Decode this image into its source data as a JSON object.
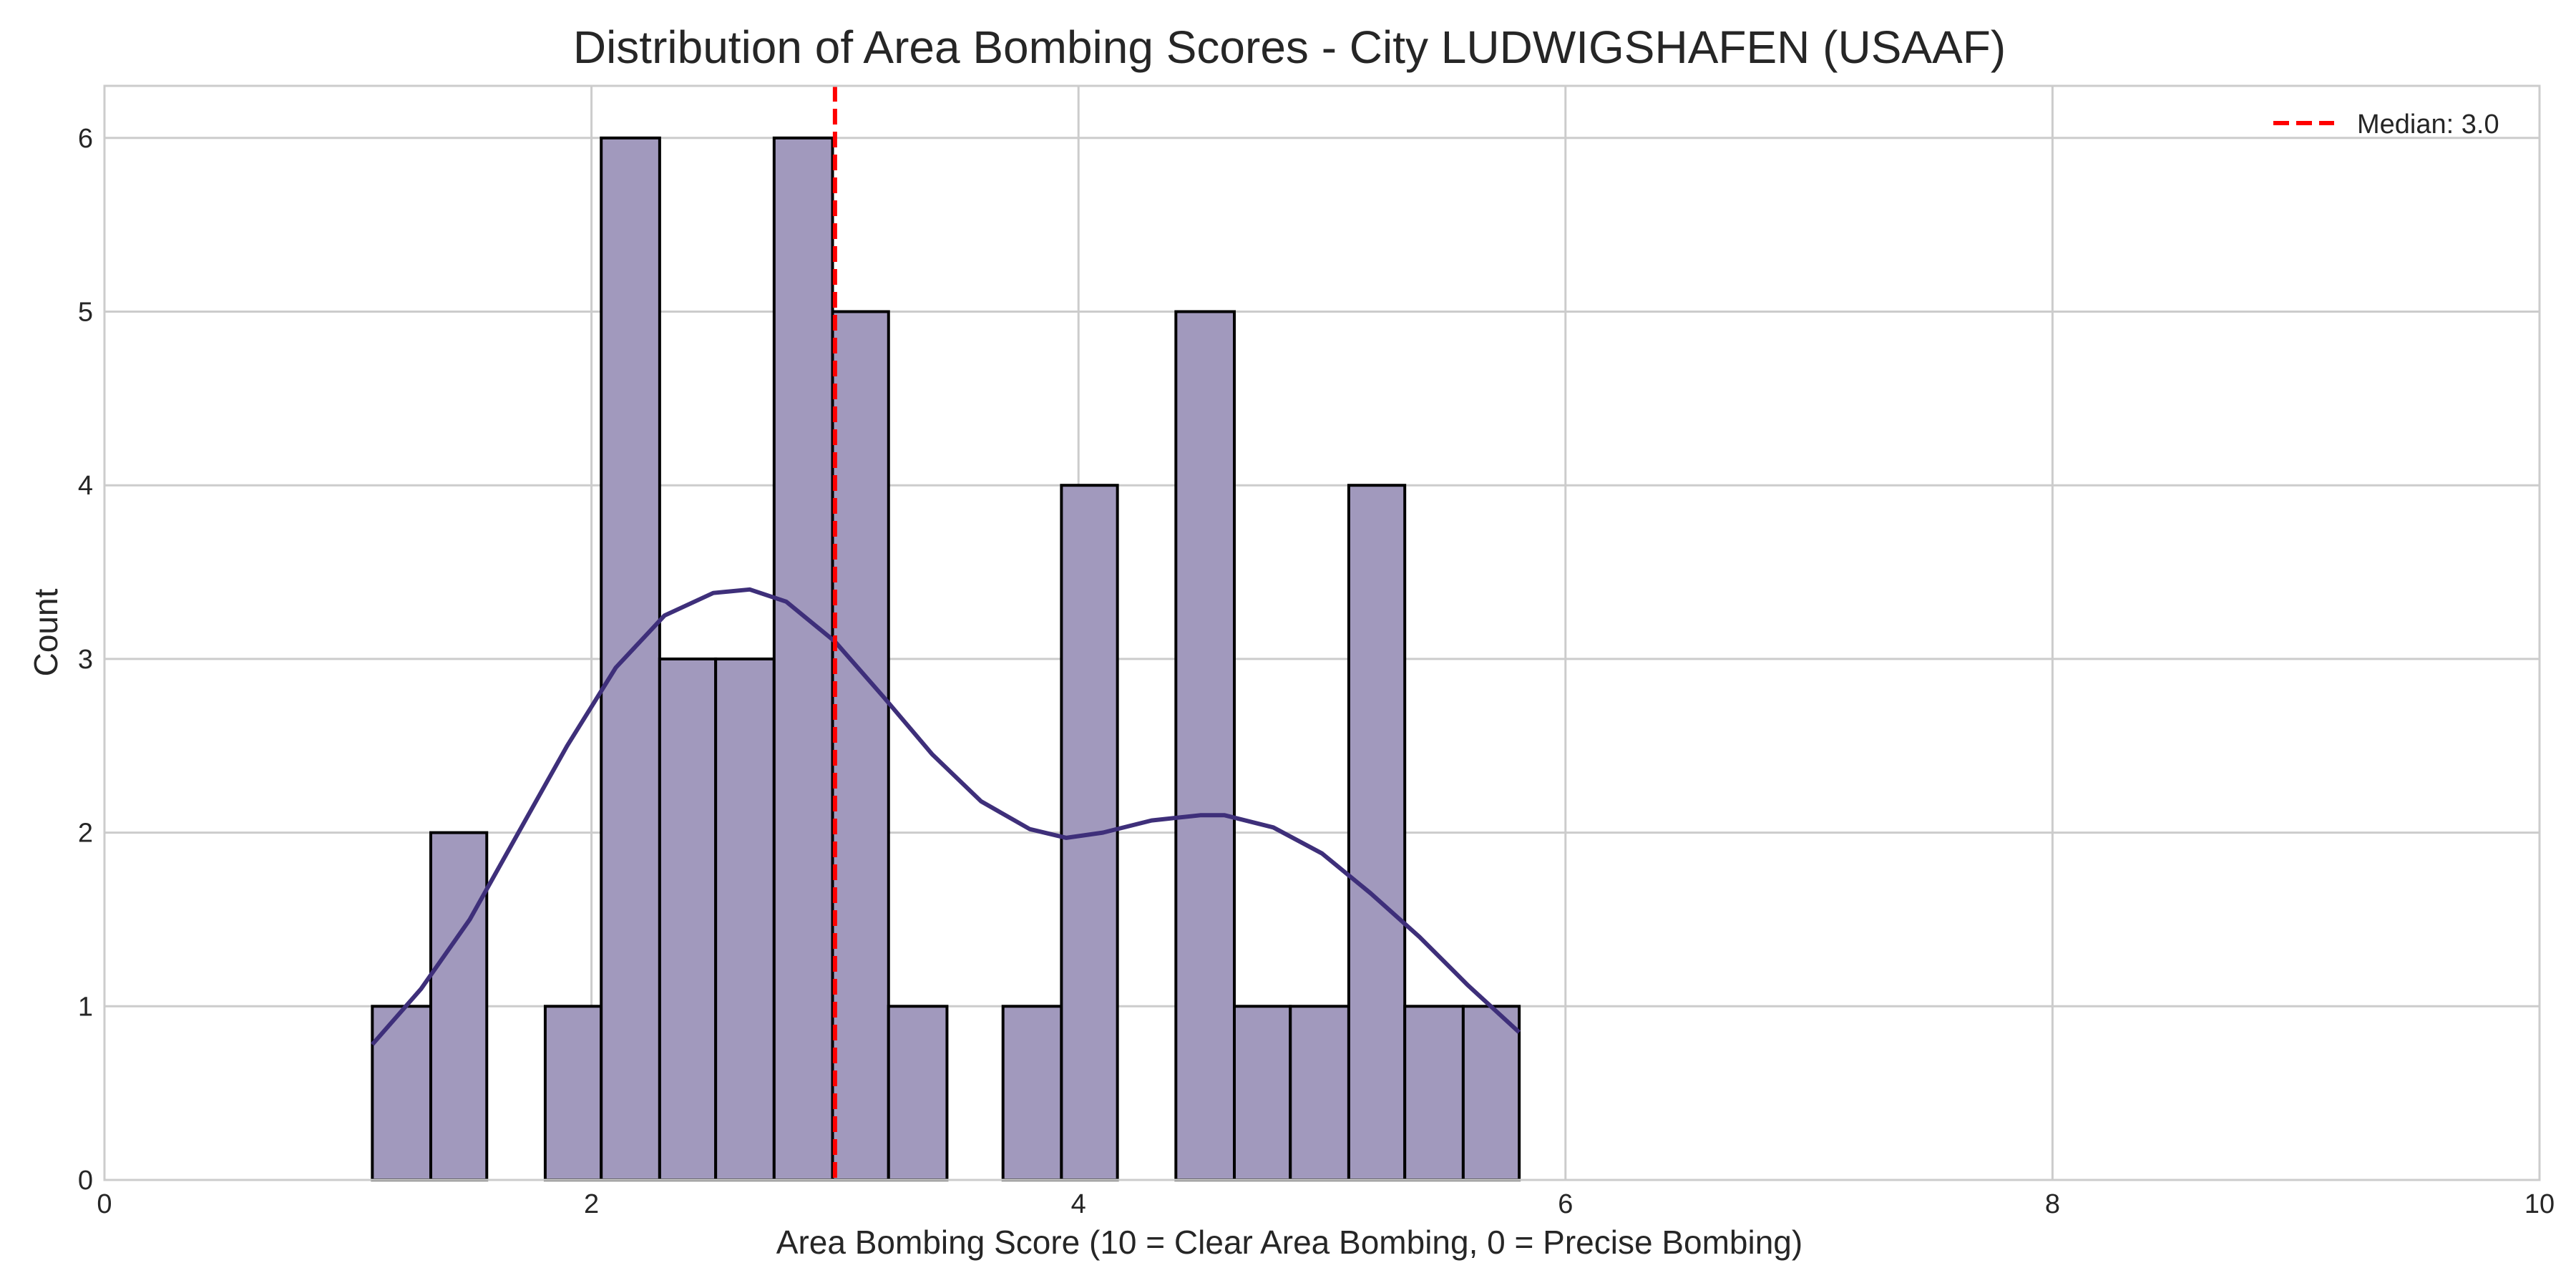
{
  "chart_data": {
    "type": "bar",
    "title": "Distribution of Area Bombing Scores - City LUDWIGSHAFEN (USAAF)",
    "xlabel": "Area Bombing Score (10 = Clear Area Bombing, 0 = Precise Bombing)",
    "ylabel": "Count",
    "xlim": [
      0,
      10
    ],
    "ylim": [
      0,
      6.3
    ],
    "x_ticks": [
      0,
      2,
      4,
      6,
      8,
      10
    ],
    "y_ticks": [
      0,
      1,
      2,
      3,
      4,
      5,
      6
    ],
    "grid": true,
    "legend_position": "top-right",
    "bins": [
      {
        "x0": 1.1,
        "x1": 1.34,
        "count": 1
      },
      {
        "x0": 1.34,
        "x1": 1.57,
        "count": 2
      },
      {
        "x0": 1.81,
        "x1": 2.04,
        "count": 1
      },
      {
        "x0": 2.04,
        "x1": 2.28,
        "count": 6
      },
      {
        "x0": 2.28,
        "x1": 2.51,
        "count": 3
      },
      {
        "x0": 2.51,
        "x1": 2.75,
        "count": 3
      },
      {
        "x0": 2.75,
        "x1": 2.99,
        "count": 6
      },
      {
        "x0": 2.99,
        "x1": 3.22,
        "count": 5
      },
      {
        "x0": 3.22,
        "x1": 3.46,
        "count": 1
      },
      {
        "x0": 3.69,
        "x1": 3.93,
        "count": 1
      },
      {
        "x0": 3.93,
        "x1": 4.16,
        "count": 4
      },
      {
        "x0": 4.4,
        "x1": 4.64,
        "count": 5
      },
      {
        "x0": 4.64,
        "x1": 4.87,
        "count": 1
      },
      {
        "x0": 4.87,
        "x1": 5.11,
        "count": 1
      },
      {
        "x0": 5.11,
        "x1": 5.34,
        "count": 4
      },
      {
        "x0": 5.34,
        "x1": 5.58,
        "count": 1
      },
      {
        "x0": 5.58,
        "x1": 5.81,
        "count": 1
      }
    ],
    "kde": {
      "x": [
        1.1,
        1.3,
        1.5,
        1.7,
        1.9,
        2.1,
        2.3,
        2.5,
        2.65,
        2.8,
        3.0,
        3.2,
        3.4,
        3.6,
        3.8,
        3.95,
        4.1,
        4.3,
        4.5,
        4.6,
        4.8,
        5.0,
        5.2,
        5.4,
        5.6,
        5.81
      ],
      "y": [
        0.78,
        1.1,
        1.5,
        2.0,
        2.5,
        2.95,
        3.25,
        3.38,
        3.4,
        3.33,
        3.1,
        2.78,
        2.45,
        2.18,
        2.02,
        1.97,
        2.0,
        2.07,
        2.1,
        2.1,
        2.03,
        1.88,
        1.65,
        1.4,
        1.12,
        0.85
      ]
    },
    "median": {
      "value": 3.0,
      "label": "Median: 3.0"
    },
    "colors": {
      "bar_fill": "#a199bd",
      "bar_edge": "#000000",
      "kde_line": "#3e2f7a",
      "median_line": "#ff0000",
      "grid": "#cccccc",
      "axes_edge": "#cccccc"
    }
  }
}
